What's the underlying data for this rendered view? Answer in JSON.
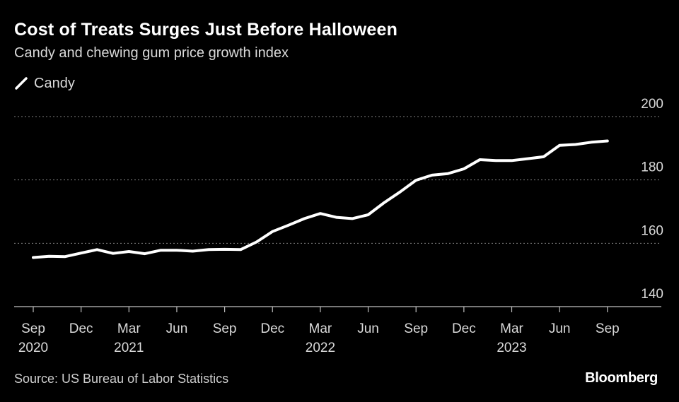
{
  "header": {
    "title": "Cost of Treats Surges Just Before Halloween",
    "subtitle": "Candy and chewing gum price growth index"
  },
  "legend": {
    "label": "Candy"
  },
  "footer": {
    "source": "Source: US Bureau of Labor Statistics",
    "brand": "Bloomberg"
  },
  "colors": {
    "background": "#000000",
    "line": "#ffffff",
    "grid": "#808080",
    "text": "#d9d9d9"
  },
  "chart_data": {
    "type": "line",
    "title": "Cost of Treats Surges Just Before Halloween",
    "subtitle": "Candy and chewing gum price growth index",
    "x": [
      "2020-09",
      "2020-10",
      "2020-11",
      "2020-12",
      "2021-01",
      "2021-02",
      "2021-03",
      "2021-04",
      "2021-05",
      "2021-06",
      "2021-07",
      "2021-08",
      "2021-09",
      "2021-10",
      "2021-11",
      "2021-12",
      "2022-01",
      "2022-02",
      "2022-03",
      "2022-04",
      "2022-05",
      "2022-06",
      "2022-07",
      "2022-08",
      "2022-09",
      "2022-10",
      "2022-11",
      "2022-12",
      "2023-01",
      "2023-02",
      "2023-03",
      "2023-04",
      "2023-05",
      "2023-06",
      "2023-07",
      "2023-08",
      "2023-09"
    ],
    "series": [
      {
        "name": "Candy",
        "values": [
          155.5,
          155.9,
          155.8,
          156.9,
          158.0,
          156.8,
          157.4,
          156.7,
          157.8,
          157.8,
          157.5,
          158.0,
          158.1,
          158.0,
          160.4,
          163.7,
          165.7,
          167.8,
          169.4,
          168.2,
          167.8,
          169.0,
          172.8,
          176.2,
          179.9,
          181.5,
          182.0,
          183.5,
          186.4,
          186.1,
          186.1,
          186.7,
          187.3,
          190.9,
          191.2,
          191.9,
          192.3
        ]
      }
    ],
    "x_ticks": [
      {
        "month": "Sep",
        "year": "2020",
        "index": 0
      },
      {
        "month": "Dec",
        "year": "",
        "index": 3
      },
      {
        "month": "Mar",
        "year": "2021",
        "index": 6
      },
      {
        "month": "Jun",
        "year": "",
        "index": 9
      },
      {
        "month": "Sep",
        "year": "",
        "index": 12
      },
      {
        "month": "Dec",
        "year": "",
        "index": 15
      },
      {
        "month": "Mar",
        "year": "2022",
        "index": 18
      },
      {
        "month": "Jun",
        "year": "",
        "index": 21
      },
      {
        "month": "Sep",
        "year": "",
        "index": 24
      },
      {
        "month": "Dec",
        "year": "",
        "index": 27
      },
      {
        "month": "Mar",
        "year": "2023",
        "index": 30
      },
      {
        "month": "Jun",
        "year": "",
        "index": 33
      },
      {
        "month": "Sep",
        "year": "",
        "index": 36
      }
    ],
    "y_ticks": [
      140,
      160,
      180,
      200
    ],
    "ylim": [
      140,
      200
    ],
    "y_axis_position": "right",
    "grid": "horizontal-dotted",
    "legend_position": "top-left"
  }
}
